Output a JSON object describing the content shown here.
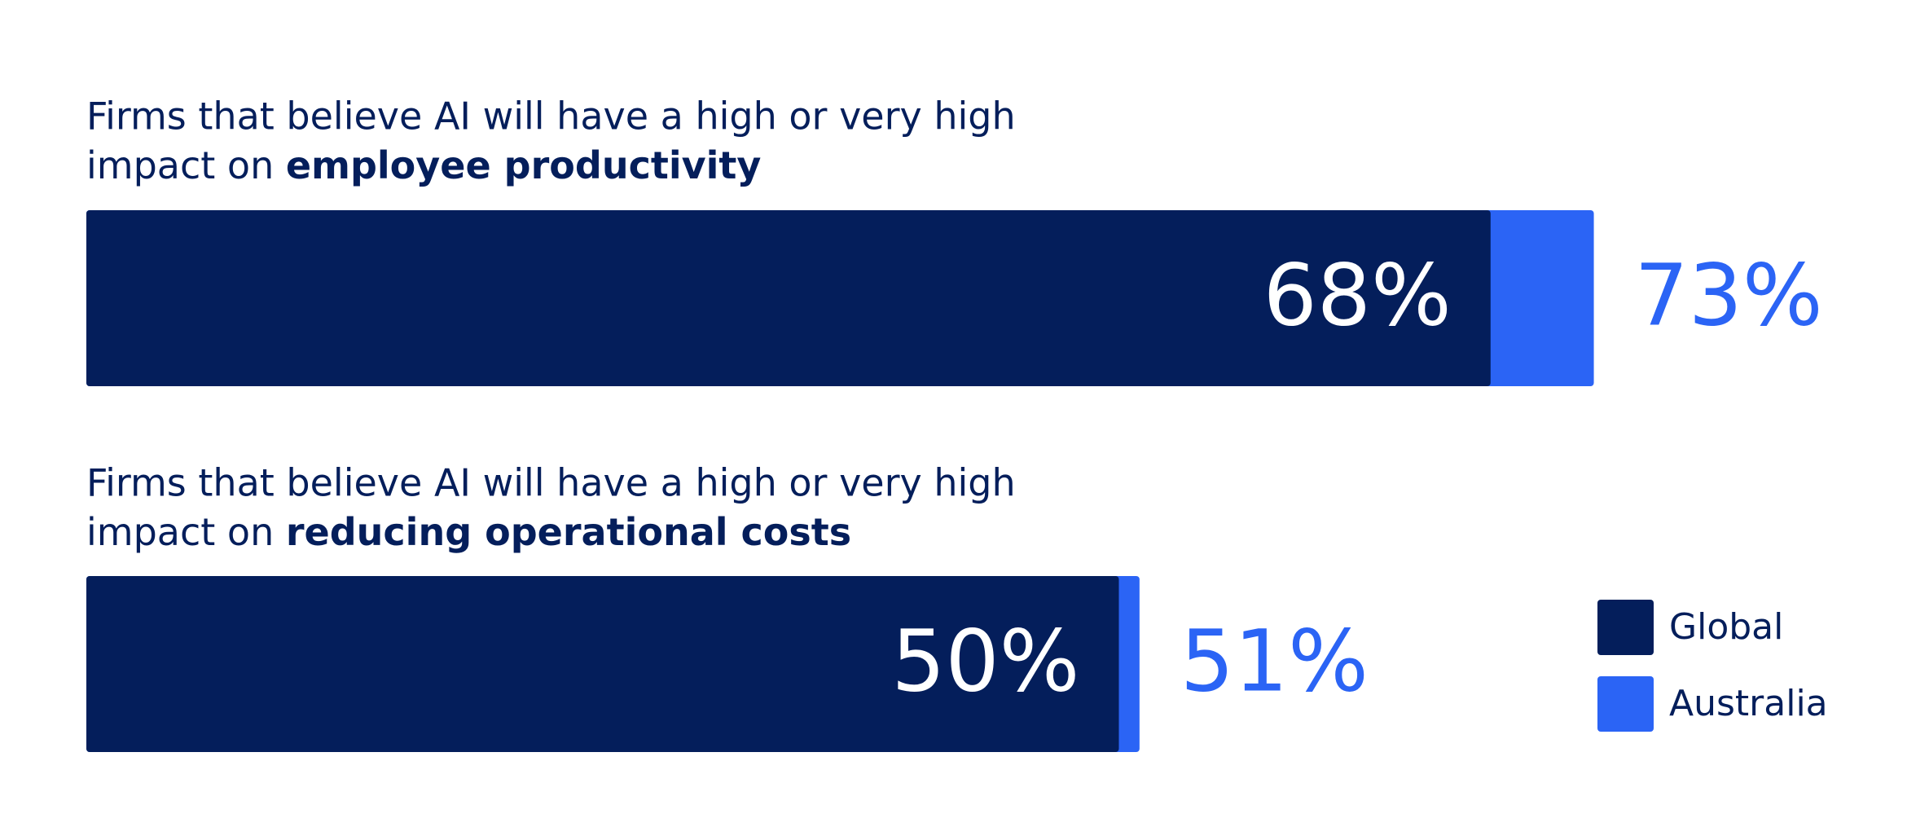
{
  "chart_data": {
    "type": "bar",
    "category_prefix": [
      "Firms that believe AI will have a high or very high",
      "impact on"
    ],
    "categories": [
      "employee productivity",
      "reducing operational costs"
    ],
    "series": [
      {
        "name": "Global",
        "color": "#041e5b",
        "values": [
          68,
          50
        ],
        "value_labels": [
          "68%",
          "50%"
        ]
      },
      {
        "name": "Australia",
        "color": "#2b64f5",
        "values": [
          73,
          51
        ],
        "value_labels": [
          "73%",
          "51%"
        ]
      }
    ]
  }
}
